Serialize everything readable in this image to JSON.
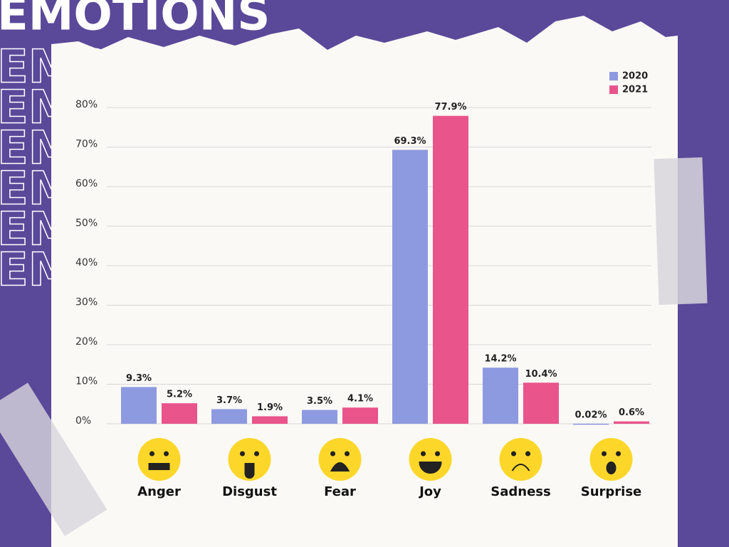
{
  "chart_data": {
    "type": "bar",
    "title": "EMOTIONS",
    "categories": [
      "Anger",
      "Disgust",
      "Fear",
      "Joy",
      "Sadness",
      "Surprise"
    ],
    "series": [
      {
        "name": "2020",
        "color": "#8e9ae0",
        "values": [
          9.3,
          3.7,
          3.5,
          69.3,
          14.2,
          0.02
        ],
        "value_labels": [
          "9.3%",
          "3.7%",
          "3.5%",
          "69.3%",
          "14.2%",
          "0.02%"
        ]
      },
      {
        "name": "2021",
        "color": "#e9548b",
        "values": [
          5.2,
          1.9,
          4.1,
          77.9,
          10.4,
          0.6
        ],
        "value_labels": [
          "5.2%",
          "1.9%",
          "4.1%",
          "77.9%",
          "10.4%",
          "0.6%"
        ]
      }
    ],
    "ylim": [
      0,
      80
    ],
    "yticks": [
      {
        "value": 0,
        "label": "0%"
      },
      {
        "value": 10,
        "label": "10%"
      },
      {
        "value": 20,
        "label": "20%"
      },
      {
        "value": 30,
        "label": "30%"
      },
      {
        "value": 40,
        "label": "40%"
      },
      {
        "value": 50,
        "label": "50%"
      },
      {
        "value": 60,
        "label": "60%"
      },
      {
        "value": 70,
        "label": "70%"
      },
      {
        "value": 80,
        "label": "80%"
      }
    ],
    "grid": true,
    "legend": "top-right"
  }
}
